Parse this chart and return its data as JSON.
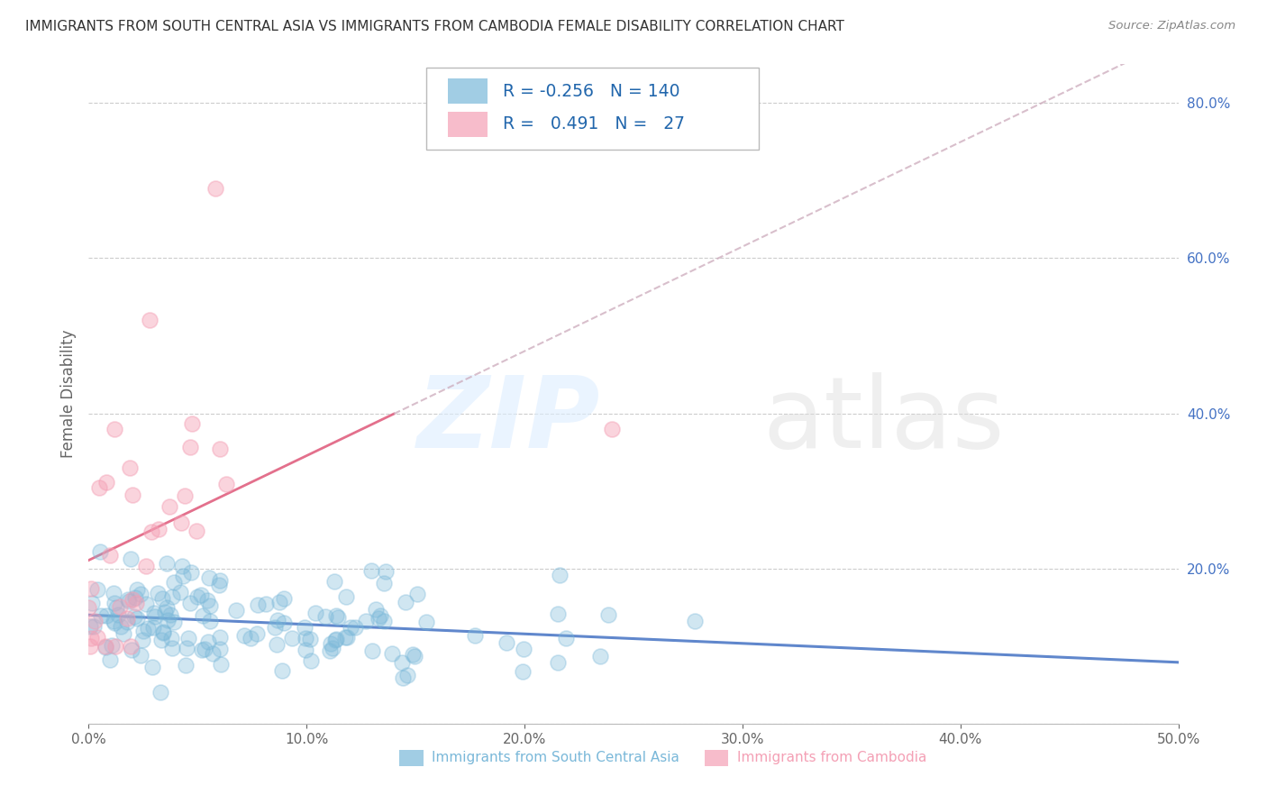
{
  "title": "IMMIGRANTS FROM SOUTH CENTRAL ASIA VS IMMIGRANTS FROM CAMBODIA FEMALE DISABILITY CORRELATION CHART",
  "source": "Source: ZipAtlas.com",
  "xlabel_blue": "Immigrants from South Central Asia",
  "xlabel_pink": "Immigrants from Cambodia",
  "ylabel": "Female Disability",
  "xlim": [
    0.0,
    0.5
  ],
  "ylim": [
    0.0,
    0.85
  ],
  "xticks": [
    0.0,
    0.1,
    0.2,
    0.3,
    0.4,
    0.5
  ],
  "xtick_labels": [
    "0.0%",
    "10.0%",
    "20.0%",
    "30.0%",
    "40.0%",
    "50.0%"
  ],
  "yticks": [
    0.0,
    0.2,
    0.4,
    0.6,
    0.8
  ],
  "ytick_labels": [
    "",
    "20.0%",
    "40.0%",
    "60.0%",
    "80.0%"
  ],
  "R_blue": -0.256,
  "N_blue": 140,
  "R_pink": 0.491,
  "N_pink": 27,
  "blue_color": "#7ab8d9",
  "pink_color": "#f4a0b5",
  "legend_color": "#2166ac",
  "trend_blue_color": "#4472c4",
  "trend_pink_color": "#e06080",
  "trend_dashed_color": "#ccaabb"
}
